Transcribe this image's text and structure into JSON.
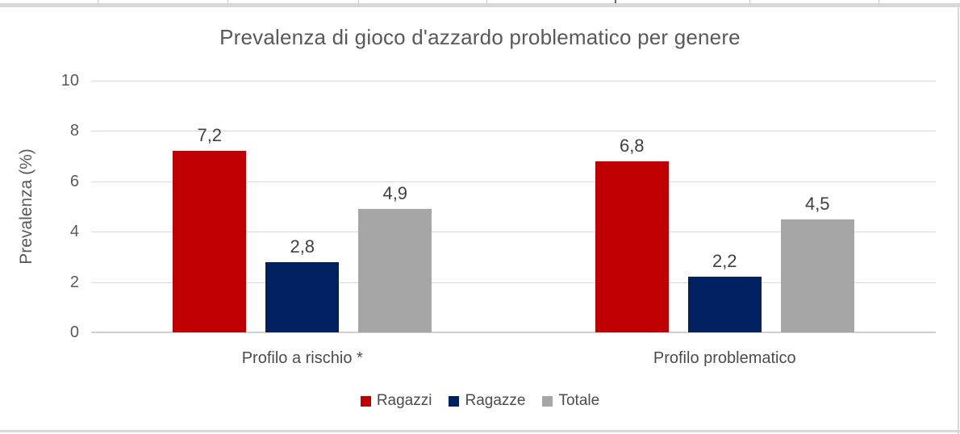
{
  "chart_data": {
    "type": "bar",
    "title": "Prevalenza di gioco d'azzardo problematico per genere",
    "ylabel": "Prevalenza (%)",
    "xlabel": "",
    "categories": [
      "Profilo a rischio *",
      "Profilo problematico"
    ],
    "series": [
      {
        "name": "Ragazzi",
        "color": "#c00000",
        "values": [
          7.2,
          6.8
        ],
        "labels": [
          "7,2",
          "6,8"
        ]
      },
      {
        "name": "Ragazze",
        "color": "#002060",
        "values": [
          2.8,
          2.2
        ],
        "labels": [
          "2,8",
          "2,2"
        ]
      },
      {
        "name": "Totale",
        "color": "#a6a6a6",
        "values": [
          4.9,
          4.5
        ],
        "labels": [
          "4,9",
          "4,5"
        ]
      }
    ],
    "y_ticks": [
      0,
      2,
      4,
      6,
      8,
      10
    ],
    "ylim": [
      0,
      10
    ],
    "grid": true,
    "legend_position": "bottom"
  },
  "style": {
    "title_color": "#595959",
    "axis_text_color": "#595959",
    "data_label_color": "#404040",
    "category_text_color": "#4c4c4c",
    "gridline_color": "#d9d9d9",
    "zero_line_color": "#cfcfcf",
    "frame_color": "#d8d8d8",
    "background": "#ffffff"
  }
}
